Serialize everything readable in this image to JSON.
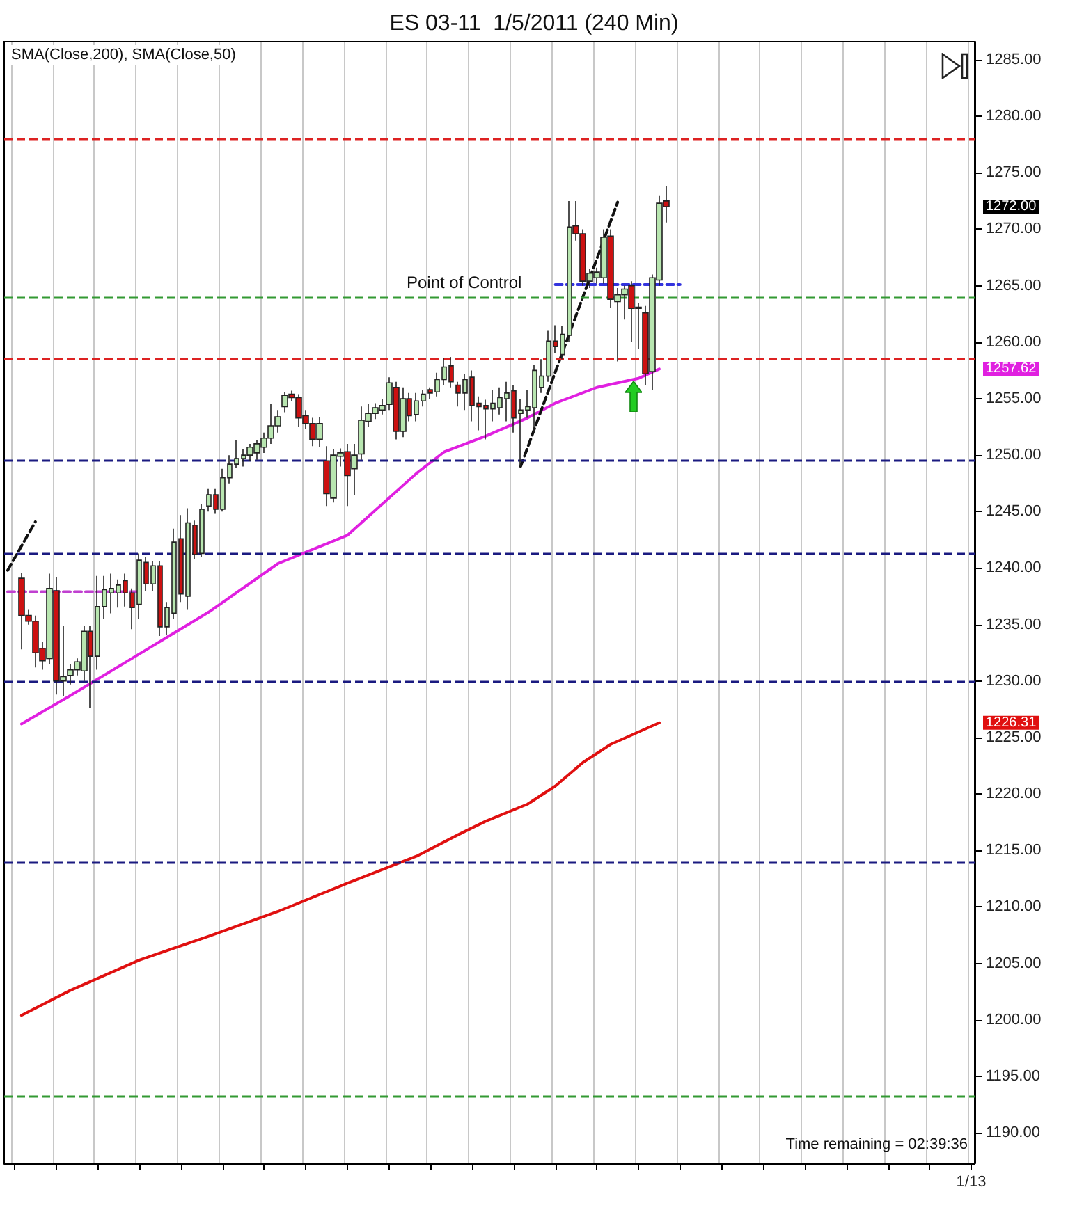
{
  "chart_data": {
    "type": "candlestick",
    "title": "ES 03-11  1/5/2011 (240 Min)",
    "subtitle": "SMA(Close,200), SMA(Close,50)",
    "annotations": [
      "Point of Control",
      "Time remaining = 02:39:36",
      "1257.62",
      "1226.31"
    ],
    "categories": [
      null,
      null,
      null,
      null,
      null,
      null,
      null,
      null,
      null,
      null,
      null,
      null,
      null,
      null,
      null,
      null,
      null,
      null,
      null,
      null,
      null,
      null,
      null,
      null,
      null,
      null,
      null,
      null,
      null,
      null,
      null,
      null,
      null,
      null,
      null,
      null,
      null,
      null,
      null,
      null,
      null,
      null,
      null,
      null,
      null,
      null,
      null,
      null,
      null,
      null,
      null,
      null,
      null,
      null,
      null,
      null,
      null,
      null,
      null,
      null,
      null,
      null,
      null,
      null,
      null,
      null,
      null,
      null,
      null,
      null,
      null,
      null,
      null,
      null,
      null,
      null,
      null,
      null,
      null,
      null,
      null,
      null,
      null,
      null,
      null,
      null,
      null,
      null,
      null,
      null,
      null,
      null,
      null,
      null,
      null,
      null,
      null,
      null,
      null,
      null,
      null,
      null,
      null,
      null,
      null,
      null,
      null,
      null,
      null,
      null,
      null,
      null,
      null,
      null,
      null,
      null,
      null,
      null,
      null,
      null,
      null,
      null,
      null,
      null,
      null,
      null,
      null,
      null,
      null,
      null,
      null,
      null,
      null,
      null,
      null,
      null,
      null,
      null,
      null,
      "1/13"
    ],
    "ohlc": [
      null,
      null,
      [
        1239.1,
        1239.6,
        1232.8,
        1235.8
      ],
      [
        1235.8,
        1236.3,
        1235.0,
        1235.3
      ],
      [
        1235.3,
        1235.8,
        1231.2,
        1232.5
      ],
      [
        1232.9,
        1233.5,
        1231.0,
        1231.8
      ],
      [
        1232.0,
        1239.5,
        1231.5,
        1238.2
      ],
      [
        1238.0,
        1239.2,
        1228.8,
        1230.0
      ],
      [
        1230.0,
        1234.9,
        1228.7,
        1230.4
      ],
      [
        1230.5,
        1231.5,
        1229.7,
        1231.0
      ],
      [
        1231.0,
        1232.0,
        1230.5,
        1231.7
      ],
      [
        1230.9,
        1234.9,
        1230.0,
        1234.4
      ],
      [
        1234.4,
        1234.9,
        1227.6,
        1232.2
      ],
      [
        1232.2,
        1239.3,
        1231.0,
        1236.6
      ],
      [
        1236.6,
        1239.3,
        1235.5,
        1238.1
      ],
      [
        1237.8,
        1239.5,
        1236.0,
        1238.2
      ],
      [
        1237.8,
        1239.0,
        1236.5,
        1238.5
      ],
      [
        1238.9,
        1239.5,
        1236.6,
        1237.8
      ],
      [
        1237.8,
        1238.2,
        1234.6,
        1236.5
      ],
      [
        1236.8,
        1241.3,
        1235.5,
        1240.7
      ],
      [
        1240.5,
        1241.0,
        1238.0,
        1238.6
      ],
      [
        1238.6,
        1240.6,
        1238.0,
        1240.2
      ],
      [
        1240.2,
        1240.6,
        1234.0,
        1234.8
      ],
      [
        1234.8,
        1237.0,
        1234.1,
        1236.5
      ],
      [
        1236.0,
        1243.5,
        1235.5,
        1242.3
      ],
      [
        1242.6,
        1244.7,
        1237.0,
        1237.7
      ],
      [
        1237.5,
        1245.3,
        1236.3,
        1244.0
      ],
      [
        1243.8,
        1244.2,
        1240.8,
        1241.2
      ],
      [
        1241.3,
        1245.7,
        1241.0,
        1245.2
      ],
      [
        1245.5,
        1247.0,
        1245.0,
        1246.5
      ],
      [
        1246.5,
        1247.0,
        1244.8,
        1245.2
      ],
      [
        1245.2,
        1248.8,
        1245.0,
        1248.0
      ],
      [
        1248.0,
        1250.0,
        1247.5,
        1249.2
      ],
      [
        1249.2,
        1251.3,
        1248.9,
        1249.7
      ],
      [
        1249.7,
        1250.5,
        1249.0,
        1250.0
      ],
      [
        1250.0,
        1251.0,
        1249.5,
        1250.7
      ],
      [
        1250.2,
        1251.3,
        1249.6,
        1251.0
      ],
      [
        1250.7,
        1252.0,
        1250.2,
        1251.5
      ],
      [
        1251.5,
        1254.5,
        1251.0,
        1252.6
      ],
      [
        1252.6,
        1254.0,
        1252.0,
        1253.4
      ],
      [
        1254.3,
        1255.6,
        1253.8,
        1255.3
      ],
      [
        1255.4,
        1255.7,
        1254.8,
        1255.1
      ],
      [
        1255.1,
        1255.4,
        1252.5,
        1253.3
      ],
      [
        1253.5,
        1254.0,
        1252.3,
        1252.8
      ],
      [
        1252.8,
        1253.3,
        1250.8,
        1251.4
      ],
      [
        1251.4,
        1253.4,
        1250.7,
        1252.8
      ],
      [
        1249.5,
        1250.8,
        1245.5,
        1246.6
      ],
      [
        1246.2,
        1250.5,
        1245.8,
        1250.0
      ],
      [
        1249.9,
        1250.6,
        1249.0,
        1250.2
      ],
      [
        1250.3,
        1251.0,
        1245.5,
        1248.2
      ],
      [
        1248.8,
        1251.0,
        1246.5,
        1250.0
      ],
      [
        1250.1,
        1254.3,
        1249.6,
        1253.1
      ],
      [
        1253.0,
        1254.5,
        1252.5,
        1253.7
      ],
      [
        1253.7,
        1254.6,
        1253.2,
        1254.2
      ],
      [
        1254.0,
        1255.0,
        1253.6,
        1254.4
      ],
      [
        1254.5,
        1256.9,
        1254.0,
        1256.4
      ],
      [
        1256.0,
        1256.5,
        1251.4,
        1252.1
      ],
      [
        1252.1,
        1256.0,
        1251.6,
        1255.0
      ],
      [
        1255.0,
        1255.5,
        1253.0,
        1253.5
      ],
      [
        1253.6,
        1255.5,
        1253.0,
        1254.8
      ],
      [
        1254.8,
        1255.8,
        1254.3,
        1255.4
      ],
      [
        1255.8,
        1256.0,
        1255.0,
        1255.5
      ],
      [
        1255.6,
        1257.3,
        1255.2,
        1256.7
      ],
      [
        1256.7,
        1258.6,
        1256.2,
        1257.8
      ],
      [
        1257.9,
        1258.7,
        1256.0,
        1256.5
      ],
      [
        1256.2,
        1256.5,
        1254.3,
        1255.5
      ],
      [
        1255.5,
        1257.2,
        1254.0,
        1256.7
      ],
      [
        1256.9,
        1257.5,
        1253.0,
        1254.4
      ],
      [
        1254.6,
        1255.2,
        1252.2,
        1254.3
      ],
      [
        1254.4,
        1254.9,
        1251.4,
        1254.1
      ],
      [
        1254.1,
        1255.8,
        1253.0,
        1254.6
      ],
      [
        1254.2,
        1256.0,
        1253.6,
        1255.1
      ],
      [
        1255.0,
        1256.5,
        1253.0,
        1255.5
      ],
      [
        1255.7,
        1256.2,
        1252.0,
        1253.3
      ],
      [
        1253.7,
        1255.0,
        1249.0,
        1254.0
      ],
      [
        1254.0,
        1255.8,
        1253.3,
        1254.3
      ],
      [
        1254.2,
        1258.0,
        1252.0,
        1257.5
      ],
      [
        1256.0,
        1258.5,
        1255.5,
        1257.0
      ],
      [
        1257.0,
        1261.0,
        1256.5,
        1260.1
      ],
      [
        1260.1,
        1261.5,
        1259.0,
        1259.6
      ],
      [
        1258.9,
        1261.4,
        1258.5,
        1260.7
      ],
      [
        1260.6,
        1272.5,
        1260.0,
        1270.2
      ],
      [
        1270.3,
        1272.5,
        1269.0,
        1269.6
      ],
      [
        1269.6,
        1270.0,
        1265.0,
        1265.4
      ],
      [
        1265.4,
        1266.5,
        1264.8,
        1266.1
      ],
      [
        1265.7,
        1266.6,
        1265.2,
        1266.2
      ],
      [
        1265.7,
        1270.0,
        1265.2,
        1269.3
      ],
      [
        1269.4,
        1270.0,
        1263.0,
        1263.8
      ],
      [
        1263.6,
        1264.8,
        1258.3,
        1264.2
      ],
      [
        1264.2,
        1265.0,
        1262.0,
        1264.7
      ],
      [
        1265.0,
        1265.4,
        1260.0,
        1263.0
      ],
      [
        1263.0,
        1263.5,
        1259.4,
        1263.1
      ],
      [
        1262.6,
        1263.2,
        1256.2,
        1257.2
      ],
      [
        1257.4,
        1266.0,
        1255.8,
        1265.7
      ],
      [
        1265.5,
        1273.0,
        1265.0,
        1272.3
      ],
      [
        1272.5,
        1273.8,
        1270.6,
        1272.0
      ],
      null,
      null,
      null,
      null,
      null,
      null,
      null,
      null,
      null,
      null,
      null,
      null,
      null,
      null,
      null,
      null,
      null,
      null,
      null,
      null,
      null,
      null,
      null,
      null,
      null,
      null,
      null,
      null,
      null,
      null,
      null,
      null,
      null,
      null,
      null,
      null,
      null,
      null,
      null,
      null,
      null,
      null,
      null,
      null
    ],
    "value_labels": [
      null,
      null,
      null,
      null,
      null,
      null,
      null,
      null,
      null,
      null,
      null,
      null,
      null,
      null,
      null,
      null,
      null,
      null,
      null,
      null,
      null,
      null,
      null,
      null,
      null,
      null,
      null,
      null,
      null,
      null,
      null,
      null,
      null,
      null,
      null,
      null,
      null,
      null,
      null,
      null,
      null,
      null,
      null,
      null,
      null,
      null,
      null,
      null,
      null,
      null,
      null,
      null,
      null,
      null,
      null,
      null,
      null,
      null,
      null,
      null,
      null,
      null,
      null,
      null,
      null,
      null,
      null,
      null,
      null,
      null,
      null,
      null,
      null,
      null,
      null,
      null,
      null,
      null,
      null,
      null,
      null,
      null,
      null,
      null,
      null,
      null,
      null,
      null,
      null,
      null,
      null,
      null,
      null,
      null,
      null,
      "1272.00",
      null,
      null,
      null,
      null,
      null,
      null,
      null,
      null,
      null,
      null,
      null,
      null,
      null,
      null,
      null,
      null,
      null,
      null,
      null,
      null,
      null,
      null,
      null,
      null,
      null,
      null,
      null,
      null,
      null,
      null,
      null,
      null,
      null,
      null,
      null,
      null,
      null,
      null,
      null,
      null,
      null,
      null,
      null,
      null
    ],
    "series": [
      {
        "type": "line",
        "color": "#e020e0",
        "values": [
          null,
          null,
          1226.2,
          null,
          null,
          null,
          null,
          null,
          null,
          1228.7,
          null,
          null,
          null,
          null,
          null,
          null,
          null,
          null,
          null,
          1232.4,
          null,
          null,
          null,
          null,
          null,
          null,
          null,
          null,
          null,
          1236.1,
          null,
          null,
          null,
          null,
          null,
          null,
          null,
          null,
          null,
          1240.4,
          null,
          null,
          null,
          null,
          null,
          1241.9,
          null,
          null,
          null,
          1242.9,
          null,
          null,
          null,
          null,
          null,
          null,
          null,
          null,
          null,
          1248.4,
          null,
          null,
          null,
          1250.3,
          null,
          null,
          null,
          null,
          null,
          1251.7,
          null,
          null,
          null,
          null,
          null,
          1253.3,
          null,
          null,
          null,
          1254.6,
          null,
          null,
          null,
          null,
          null,
          1256.0,
          null,
          null,
          null,
          null,
          null,
          1256.8,
          null,
          null,
          1257.62,
          null,
          null,
          null,
          null,
          null,
          null,
          null,
          null,
          null,
          null,
          null,
          null,
          null,
          null,
          null,
          null,
          null,
          null,
          null,
          null,
          null,
          null,
          null,
          null,
          null,
          null,
          null,
          null,
          null,
          null,
          null,
          null,
          null,
          null,
          null,
          null,
          null,
          null,
          null,
          null,
          null,
          null,
          null,
          null,
          null
        ]
      },
      {
        "type": "line",
        "color": "#e01010",
        "values": [
          null,
          null,
          1200.4,
          null,
          null,
          null,
          null,
          null,
          null,
          1202.6,
          null,
          null,
          null,
          null,
          null,
          null,
          null,
          null,
          null,
          1205.3,
          null,
          null,
          null,
          null,
          null,
          null,
          null,
          null,
          null,
          1207.4,
          null,
          null,
          null,
          null,
          null,
          null,
          null,
          null,
          null,
          1209.6,
          null,
          null,
          null,
          null,
          null,
          null,
          null,
          null,
          null,
          1212.1,
          null,
          null,
          null,
          null,
          null,
          null,
          null,
          null,
          null,
          1214.5,
          null,
          null,
          null,
          null,
          null,
          1216.4,
          null,
          null,
          null,
          1217.6,
          null,
          null,
          null,
          null,
          null,
          1219.1,
          null,
          null,
          null,
          1220.7,
          null,
          null,
          null,
          1222.8,
          null,
          null,
          null,
          1224.4,
          null,
          null,
          null,
          null,
          null,
          null,
          1226.31,
          null,
          null,
          null,
          null,
          null,
          null,
          null,
          null,
          null,
          null,
          null,
          null,
          null,
          null,
          null,
          null,
          null,
          null,
          null,
          null,
          null,
          null,
          null,
          null,
          null,
          null,
          null,
          null,
          null,
          null,
          null,
          null,
          null,
          null,
          null,
          null,
          null,
          null,
          null,
          null,
          null,
          null,
          null,
          null,
          null
        ]
      },
      {
        "type": "line",
        "color": "#3333dd",
        "line_style": "dashed",
        "values": [
          null,
          null,
          null,
          null,
          null,
          null,
          null,
          null,
          null,
          null,
          null,
          null,
          null,
          null,
          null,
          null,
          null,
          null,
          null,
          null,
          null,
          null,
          null,
          null,
          null,
          null,
          null,
          null,
          null,
          null,
          null,
          null,
          null,
          null,
          null,
          null,
          null,
          null,
          null,
          null,
          null,
          null,
          null,
          null,
          null,
          null,
          null,
          null,
          null,
          null,
          null,
          null,
          null,
          null,
          null,
          null,
          null,
          null,
          null,
          null,
          null,
          null,
          null,
          null,
          null,
          null,
          null,
          null,
          null,
          null,
          null,
          null,
          null,
          null,
          null,
          null,
          null,
          null,
          null,
          1265.1,
          null,
          null,
          null,
          null,
          null,
          null,
          null,
          null,
          null,
          null,
          null,
          null,
          null,
          null,
          null,
          null,
          null,
          1265.1,
          null,
          null,
          null,
          null,
          null,
          null,
          null,
          null,
          null,
          null,
          null,
          null,
          null,
          null,
          null,
          null,
          null,
          null,
          null,
          null,
          null,
          null,
          null,
          null,
          null,
          null,
          null,
          null,
          null,
          null,
          null,
          null,
          null,
          null,
          null,
          null,
          null,
          null,
          null,
          null,
          null,
          null
        ]
      },
      {
        "type": "line",
        "color": "#c040d0",
        "line_style": "dashed",
        "values": [
          1237.9,
          null,
          null,
          null,
          null,
          null,
          null,
          null,
          null,
          null,
          null,
          null,
          null,
          null,
          null,
          null,
          null,
          null,
          null,
          1237.9,
          null,
          null,
          null,
          null,
          null,
          null,
          null,
          null,
          null,
          null,
          null,
          null,
          null,
          null,
          null,
          null,
          null,
          null,
          null,
          null,
          null,
          null,
          null,
          null,
          null,
          null,
          null,
          null,
          null,
          null,
          null,
          null,
          null,
          null,
          null,
          null,
          null,
          null,
          null,
          null,
          null,
          null,
          null,
          null,
          null,
          null,
          null,
          null,
          null,
          null,
          null,
          null,
          null,
          null,
          null,
          null,
          null,
          null,
          null,
          null,
          null,
          null,
          null,
          null,
          null,
          null,
          null,
          null,
          null,
          null,
          null,
          null,
          null,
          null,
          null,
          null,
          null,
          null,
          null,
          null,
          null,
          null,
          null,
          null,
          null,
          null,
          null,
          null,
          null,
          null,
          null,
          null,
          null,
          null,
          null,
          null,
          null,
          null,
          null,
          null,
          null,
          null,
          null,
          null,
          null,
          null,
          null,
          null,
          null,
          null,
          null,
          null,
          null,
          null,
          null,
          null,
          null,
          null,
          null,
          null
        ]
      },
      {
        "type": "line",
        "color": "#111111",
        "line_style": "dashed",
        "values": [
          1239.8,
          null,
          null,
          null,
          1244.1,
          null,
          null,
          null,
          null,
          null,
          null,
          null,
          null,
          null,
          null,
          null,
          null,
          null,
          null,
          null,
          null,
          null,
          null,
          null,
          null,
          null,
          null,
          null,
          null,
          null,
          null,
          null,
          null,
          null,
          null,
          null,
          null,
          null,
          null,
          null,
          null,
          null,
          null,
          null,
          null,
          null,
          null,
          null,
          null,
          null,
          null,
          null,
          null,
          null,
          null,
          null,
          null,
          null,
          null,
          null,
          null,
          null,
          null,
          null,
          null,
          null,
          null,
          null,
          null,
          null,
          null,
          null,
          null,
          null,
          null,
          null,
          null,
          null,
          null,
          null,
          null,
          null,
          null,
          null,
          null,
          null,
          null,
          null,
          null,
          null,
          null,
          null,
          null,
          null,
          null,
          null,
          null,
          null,
          null,
          null,
          null,
          null,
          null,
          null,
          null,
          null,
          null,
          null,
          null,
          null,
          null,
          null,
          null,
          null,
          null,
          null,
          null,
          null,
          null,
          null,
          null,
          null,
          null,
          null,
          null,
          null,
          null,
          null,
          null,
          null,
          null,
          null,
          null,
          null,
          null,
          null,
          null,
          null,
          null,
          null
        ]
      },
      {
        "type": "line",
        "color": "#111111",
        "line_style": "dashed",
        "values": [
          null,
          null,
          null,
          null,
          null,
          null,
          null,
          null,
          null,
          null,
          null,
          null,
          null,
          null,
          null,
          null,
          null,
          null,
          null,
          null,
          null,
          null,
          null,
          null,
          null,
          null,
          null,
          null,
          null,
          null,
          null,
          null,
          null,
          null,
          null,
          null,
          null,
          null,
          null,
          null,
          null,
          null,
          null,
          null,
          null,
          null,
          null,
          null,
          null,
          null,
          null,
          null,
          null,
          null,
          null,
          null,
          null,
          null,
          null,
          null,
          null,
          null,
          null,
          null,
          null,
          null,
          null,
          null,
          null,
          null,
          null,
          null,
          null,
          null,
          1249.0,
          null,
          null,
          null,
          null,
          null,
          null,
          null,
          null,
          null,
          null,
          null,
          null,
          null,
          1272.4,
          null,
          null,
          null,
          null,
          null,
          null,
          null,
          null,
          null,
          null,
          null,
          null,
          null,
          null,
          null,
          null,
          null,
          null,
          null,
          null,
          null,
          null,
          null,
          null,
          null,
          null,
          null,
          null,
          null,
          null,
          null,
          null,
          null,
          null,
          null,
          null,
          null,
          null,
          null,
          null,
          null,
          null,
          null,
          null,
          null,
          null,
          null,
          null,
          null,
          null,
          null
        ]
      }
    ],
    "ref_lines": [
      {
        "axis": "y",
        "value": 1278.0,
        "color": "#dd2222",
        "line_style": "dashed"
      },
      {
        "axis": "y",
        "value": 1264.0,
        "color": "#339933",
        "line_style": "dashed"
      },
      {
        "axis": "y",
        "value": 1258.5,
        "color": "#dd2222",
        "line_style": "dashed"
      },
      {
        "axis": "y",
        "value": 1249.6,
        "color": "#1a1a80",
        "line_style": "dashed"
      },
      {
        "axis": "y",
        "value": 1241.3,
        "color": "#1a1a80",
        "line_style": "dashed"
      },
      {
        "axis": "y",
        "value": 1229.9,
        "color": "#1a1a80",
        "line_style": "dashed"
      },
      {
        "axis": "y",
        "value": 1214.0,
        "color": "#1a1a80",
        "line_style": "dashed"
      },
      {
        "axis": "y",
        "value": 1193.2,
        "color": "#339933",
        "line_style": "dashed"
      }
    ],
    "ylim": [
      1187.3,
      1286.6
    ],
    "yticks": [
      {
        "value": 1190,
        "label": "1190.00"
      },
      {
        "value": 1195,
        "label": "1195.00"
      },
      {
        "value": 1200,
        "label": "1200.00"
      },
      {
        "value": 1205,
        "label": "1205.00"
      },
      {
        "value": 1210,
        "label": "1210.00"
      },
      {
        "value": 1215,
        "label": "1215.00"
      },
      {
        "value": 1220,
        "label": "1220.00"
      },
      {
        "value": 1225,
        "label": "1225.00"
      },
      {
        "value": 1230,
        "label": "1230.00"
      },
      {
        "value": 1235,
        "label": "1235.00"
      },
      {
        "value": 1240,
        "label": "1240.00"
      },
      {
        "value": 1245,
        "label": "1245.00"
      },
      {
        "value": 1250,
        "label": "1250.00"
      },
      {
        "value": 1255,
        "label": "1255.00"
      },
      {
        "value": 1260,
        "label": "1260.00"
      },
      {
        "value": 1265,
        "label": "1265.00"
      },
      {
        "value": 1270,
        "label": "1270.00"
      },
      {
        "value": 1275,
        "label": "1275.00"
      },
      {
        "value": 1280,
        "label": "1280.00"
      },
      {
        "value": 1285,
        "label": "1285.00"
      }
    ],
    "grid": "x"
  }
}
